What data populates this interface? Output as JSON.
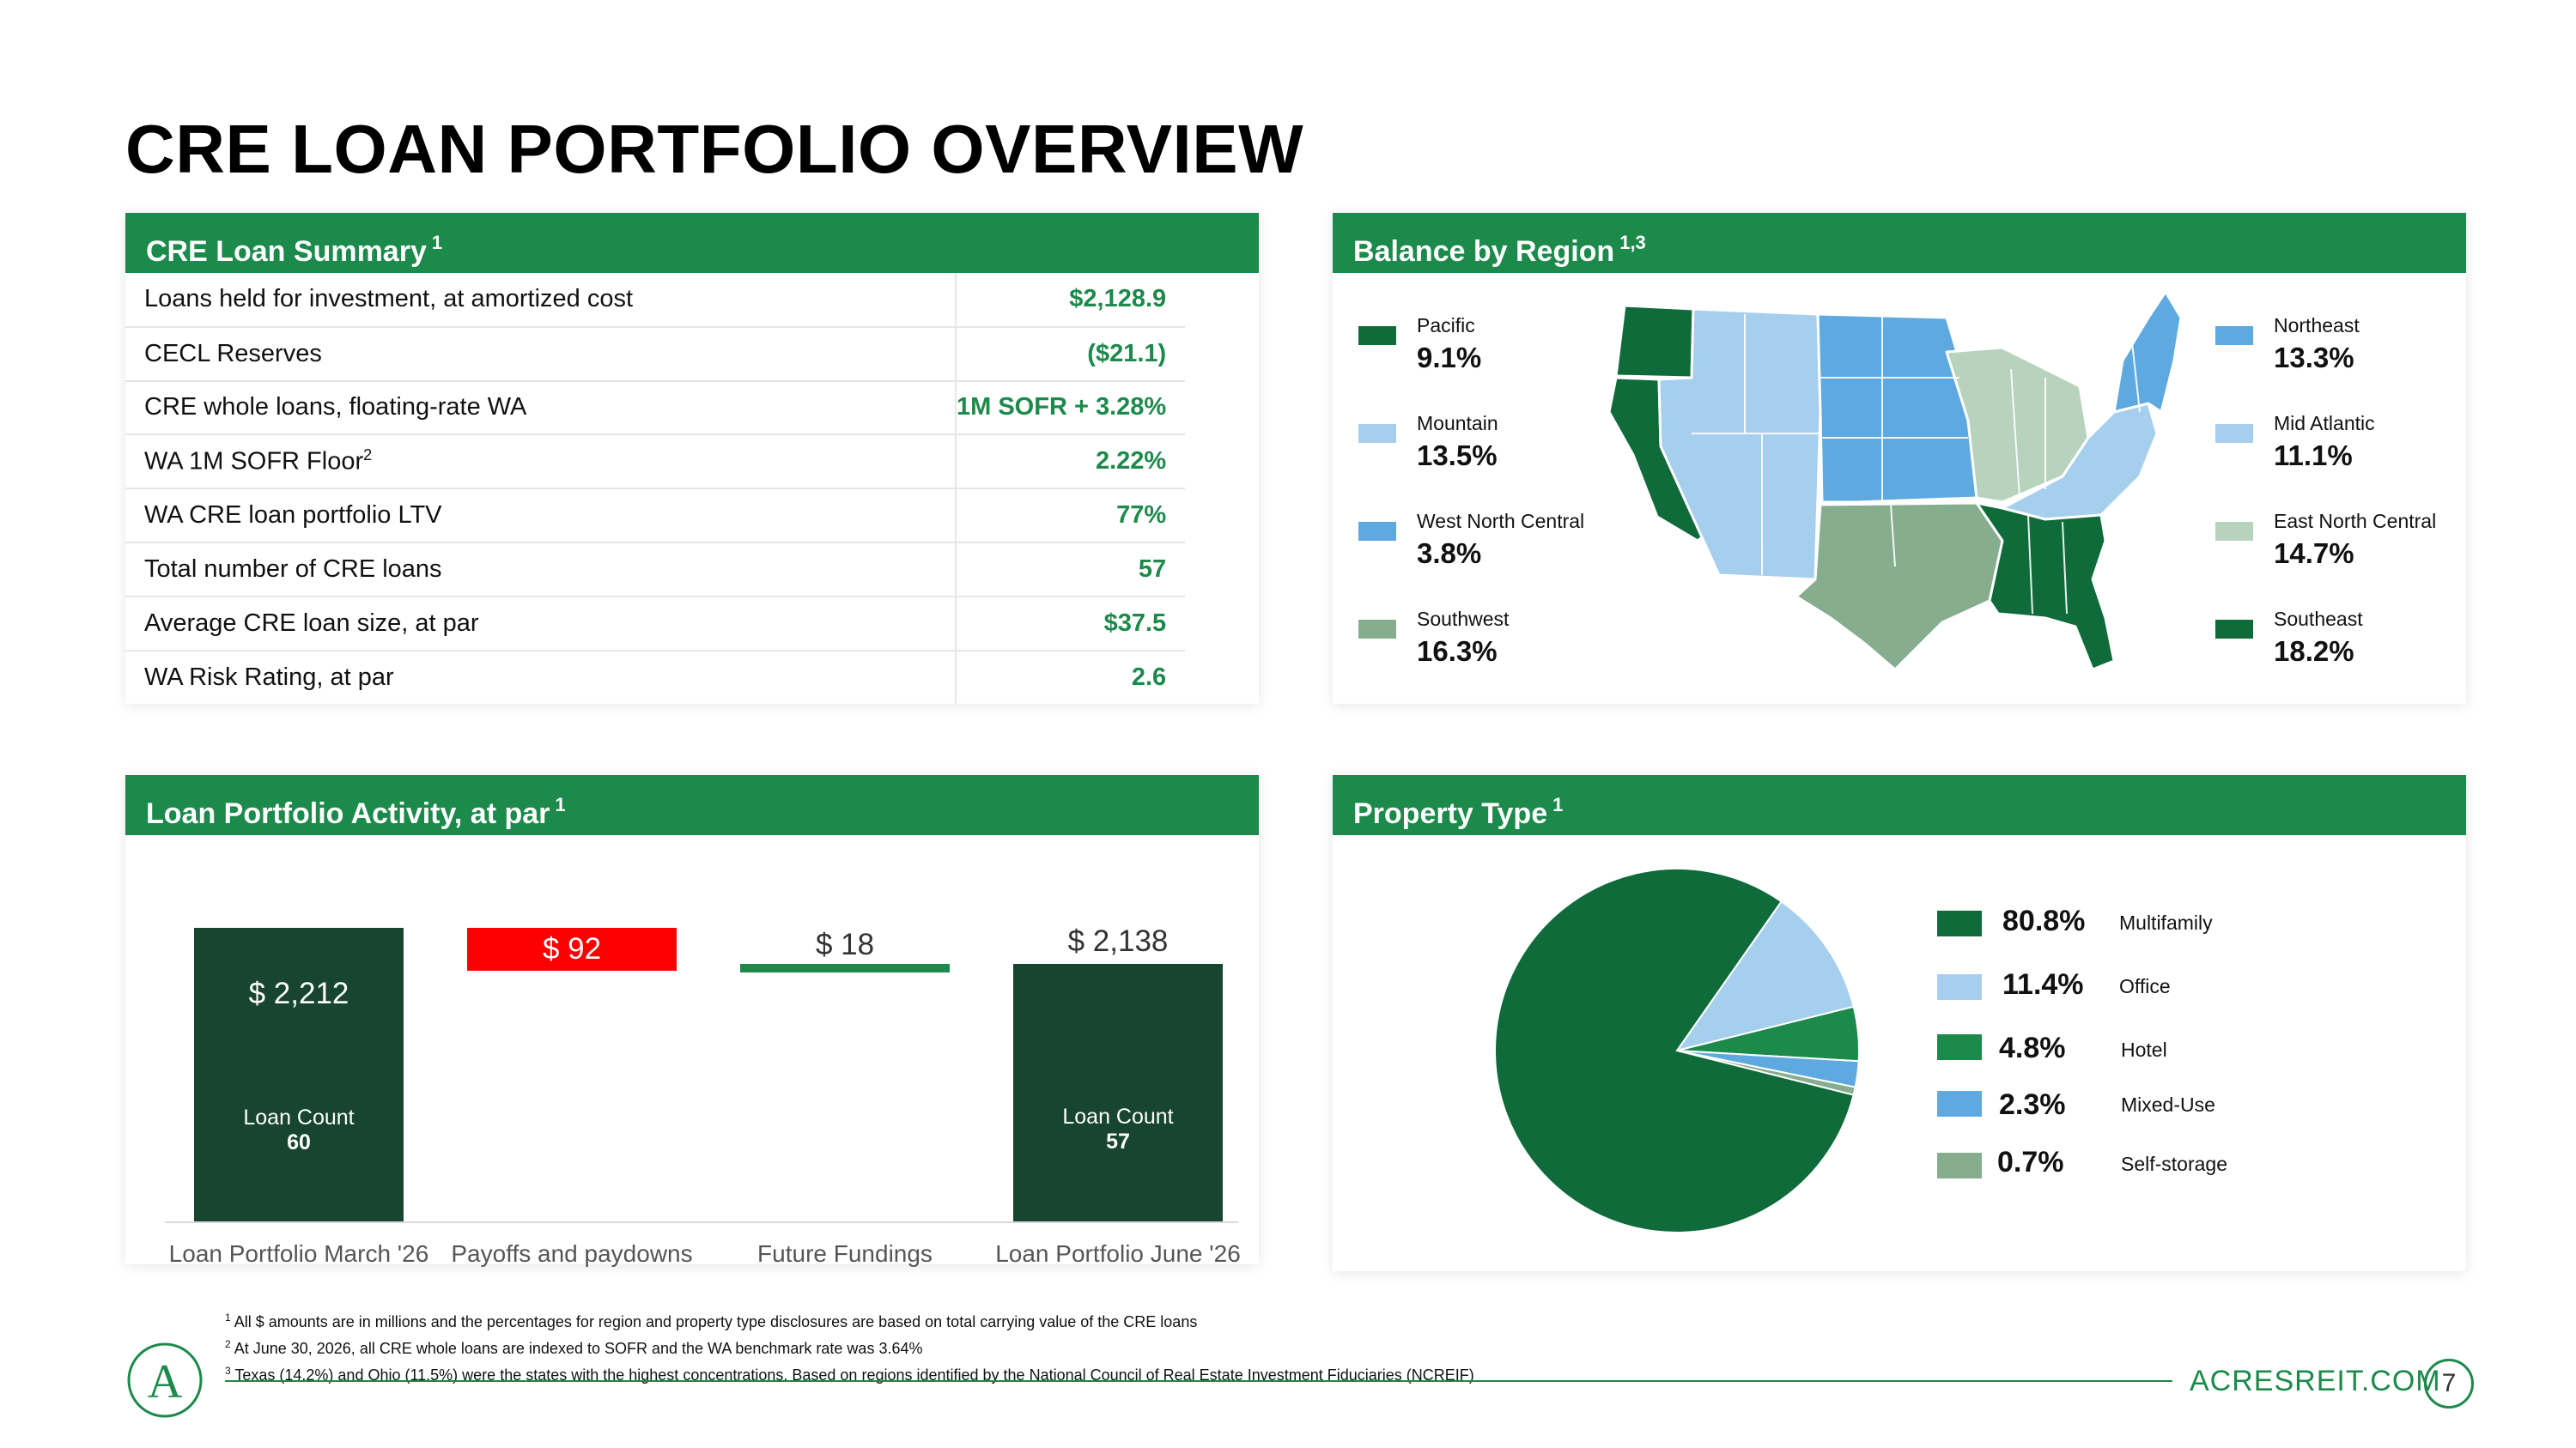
{
  "title": "CRE LOAN PORTFOLIO OVERVIEW",
  "summary": {
    "header": "CRE Loan Summary",
    "header_sup": "1",
    "rows": [
      {
        "label": "Loans held for investment, at amortized cost",
        "value": "$2,128.9"
      },
      {
        "label": "CECL Reserves",
        "value": "($21.1)"
      },
      {
        "label": "CRE whole loans, floating-rate WA",
        "value": "1M SOFR + 3.28%"
      },
      {
        "label": "WA 1M SOFR Floor",
        "label_sup": "2",
        "value": "2.22%"
      },
      {
        "label": "WA CRE loan portfolio LTV",
        "value": "77%"
      },
      {
        "label": "Total number of CRE loans",
        "value": "57"
      },
      {
        "label": "Average CRE loan size, at par",
        "value": "$37.5"
      },
      {
        "label": "WA Risk Rating, at par",
        "value": "2.6"
      }
    ]
  },
  "regions": {
    "header": "Balance by Region",
    "header_sup": "1,3",
    "items": [
      {
        "name": "Pacific",
        "pct": "9.1%",
        "color": "#0f6b3a"
      },
      {
        "name": "Mountain",
        "pct": "13.5%",
        "color": "#a6cfee"
      },
      {
        "name": "West North Central",
        "pct": "3.8%",
        "color": "#5ea9e0"
      },
      {
        "name": "Southwest",
        "pct": "16.3%",
        "color": "#86ad8e"
      },
      {
        "name": "Northeast",
        "pct": "13.3%",
        "color": "#5ea9e0"
      },
      {
        "name": "Mid Atlantic",
        "pct": "11.1%",
        "color": "#a6cfee"
      },
      {
        "name": "East North Central",
        "pct": "14.7%",
        "color": "#b7d2bd"
      },
      {
        "name": "Southeast",
        "pct": "18.2%",
        "color": "#0f6b3a"
      }
    ]
  },
  "activity": {
    "header": "Loan Portfolio Activity, at par",
    "header_sup": "1",
    "count_label": "Loan Count",
    "bars": [
      {
        "category": "Loan Portfolio March '26",
        "label": "$ 2,212",
        "count": "60",
        "color": "#17452f"
      },
      {
        "category": "Payoffs and paydowns",
        "label": "$ 92",
        "color": "#ff0000"
      },
      {
        "category": "Future Fundings",
        "label": "$ 18",
        "color": "#1b8a4a"
      },
      {
        "category": "Loan Portfolio June '26",
        "label": "$ 2,138",
        "count": "57",
        "color": "#17452f"
      }
    ]
  },
  "chart_data": {
    "type": "pie",
    "title": "Property Type",
    "categories": [
      "Multifamily",
      "Office",
      "Hotel",
      "Mixed-Use",
      "Self-storage"
    ],
    "values": [
      80.8,
      11.4,
      4.8,
      2.3,
      0.7
    ],
    "labels": [
      "80.8%",
      "11.4%",
      "4.8%",
      "2.3%",
      "0.7%"
    ],
    "colors": [
      "#0f6b3a",
      "#a6cfee",
      "#1b8a4a",
      "#5ea9e0",
      "#86ad8e"
    ]
  },
  "property": {
    "header": "Property Type",
    "header_sup": "1"
  },
  "footnotes": [
    "All $ amounts are in millions and the percentages for region and property type disclosures are based on total carrying value of the CRE loans",
    "At June 30, 2026, all CRE whole loans are indexed to SOFR and the WA benchmark rate was 3.64%",
    "Texas (14.2%) and Ohio (11.5%) were the states with the highest concentrations.  Based on regions identified by the National Council of Real Estate Investment Fiduciaries (NCREIF)"
  ],
  "footer": {
    "url": "ACRESREIT.COM",
    "page": "7",
    "logo_letter": "A"
  }
}
